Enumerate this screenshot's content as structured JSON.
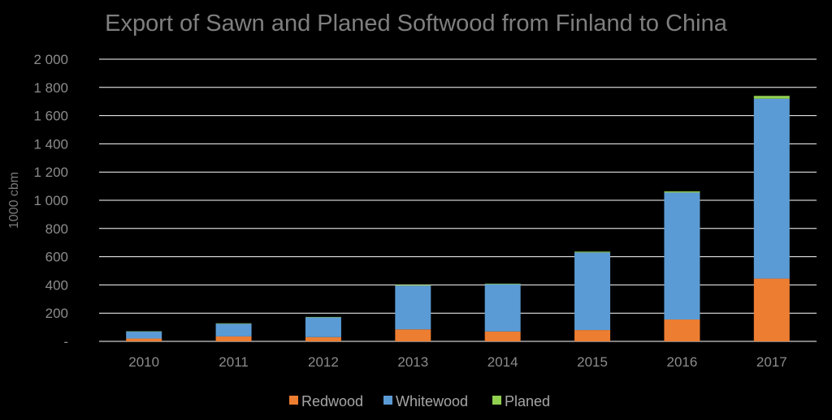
{
  "chart_data": {
    "type": "bar",
    "stacked": true,
    "title": "Export of Sawn and Planed Softwood from Finland to China",
    "ylabel": "1000 cbm",
    "xlabel": "",
    "categories": [
      "2010",
      "2011",
      "2012",
      "2013",
      "2014",
      "2015",
      "2016",
      "2017"
    ],
    "series": [
      {
        "name": "Redwood",
        "color": "#ed7d31",
        "values": [
          20,
          35,
          30,
          85,
          70,
          80,
          155,
          445
        ]
      },
      {
        "name": "Whitewood",
        "color": "#5b9bd5",
        "values": [
          50,
          90,
          140,
          310,
          335,
          550,
          900,
          1275
        ]
      },
      {
        "name": "Planed",
        "color": "#92d050",
        "values": [
          2,
          3,
          3,
          5,
          4,
          6,
          8,
          20
        ]
      }
    ],
    "ylim": [
      0,
      2000
    ],
    "yticks": [
      0,
      200,
      400,
      600,
      800,
      1000,
      1200,
      1400,
      1600,
      1800,
      2000
    ],
    "ytick_labels": [
      "-",
      "200",
      "400",
      "600",
      "800",
      "1 000",
      "1 200",
      "1 400",
      "1 600",
      "1 800",
      "2 000"
    ],
    "grid": true,
    "legend_position": "bottom",
    "background": "#000000",
    "gridline_color": "#ffffff"
  }
}
